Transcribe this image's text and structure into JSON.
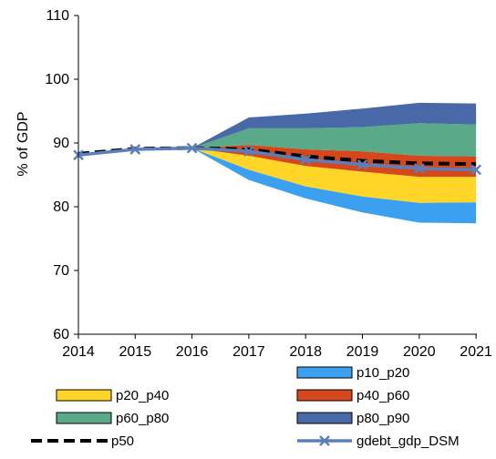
{
  "chart_data": {
    "type": "area",
    "ylabel": "% of GDP",
    "ylim": [
      60,
      110
    ],
    "y_ticks": [
      "60",
      "70",
      "80",
      "90",
      "100",
      "110"
    ],
    "x": [
      "2014",
      "2015",
      "2016",
      "2017",
      "2018",
      "2019",
      "2020",
      "2021"
    ],
    "fan_start_index": 2,
    "bands": [
      {
        "name": "p10_p20",
        "color": "#3ba0f0",
        "lower": [
          89.2,
          84.2,
          81.3,
          79.1,
          77.5,
          77.4
        ],
        "upper": [
          89.2,
          85.8,
          83.2,
          81.6,
          80.6,
          80.7
        ]
      },
      {
        "name": "p20_p40",
        "color": "#ffd527",
        "lower": [
          89.2,
          85.8,
          83.2,
          81.6,
          80.6,
          80.7
        ],
        "upper": [
          89.2,
          88.0,
          86.4,
          85.5,
          84.7,
          84.7
        ]
      },
      {
        "name": "p40_p60",
        "color": "#d4481b",
        "lower": [
          89.2,
          88.0,
          86.4,
          85.5,
          84.7,
          84.7
        ],
        "upper": [
          89.2,
          89.7,
          89.0,
          88.7,
          88.0,
          87.9
        ]
      },
      {
        "name": "p60_p80",
        "color": "#5aa988",
        "lower": [
          89.2,
          89.7,
          89.0,
          88.7,
          88.0,
          87.9
        ],
        "upper": [
          89.2,
          92.3,
          92.3,
          92.5,
          93.1,
          92.9
        ]
      },
      {
        "name": "p80_p90",
        "color": "#4868a8",
        "lower": [
          89.2,
          92.3,
          92.3,
          92.5,
          93.1,
          92.9
        ],
        "upper": [
          89.2,
          94.0,
          94.6,
          95.4,
          96.3,
          96.2
        ]
      }
    ],
    "series": [
      {
        "name": "p50",
        "color": "#000000",
        "style": "dashed",
        "values": [
          88.3,
          89.1,
          89.2,
          89.0,
          87.9,
          87.2,
          86.8,
          86.7
        ]
      },
      {
        "name": "gdebt_gdp_DSM",
        "color": "#5b7fbd",
        "style": "solid-with-x-markers",
        "values": [
          88.1,
          89.0,
          89.2,
          88.7,
          87.4,
          86.6,
          86.0,
          85.8
        ]
      }
    ],
    "legend": {
      "position": "bottom",
      "order": [
        "p10_p20",
        "p20_p40",
        "p40_p60",
        "p60_p80",
        "p80_p90",
        "p50",
        "gdebt_gdp_DSM"
      ]
    }
  }
}
